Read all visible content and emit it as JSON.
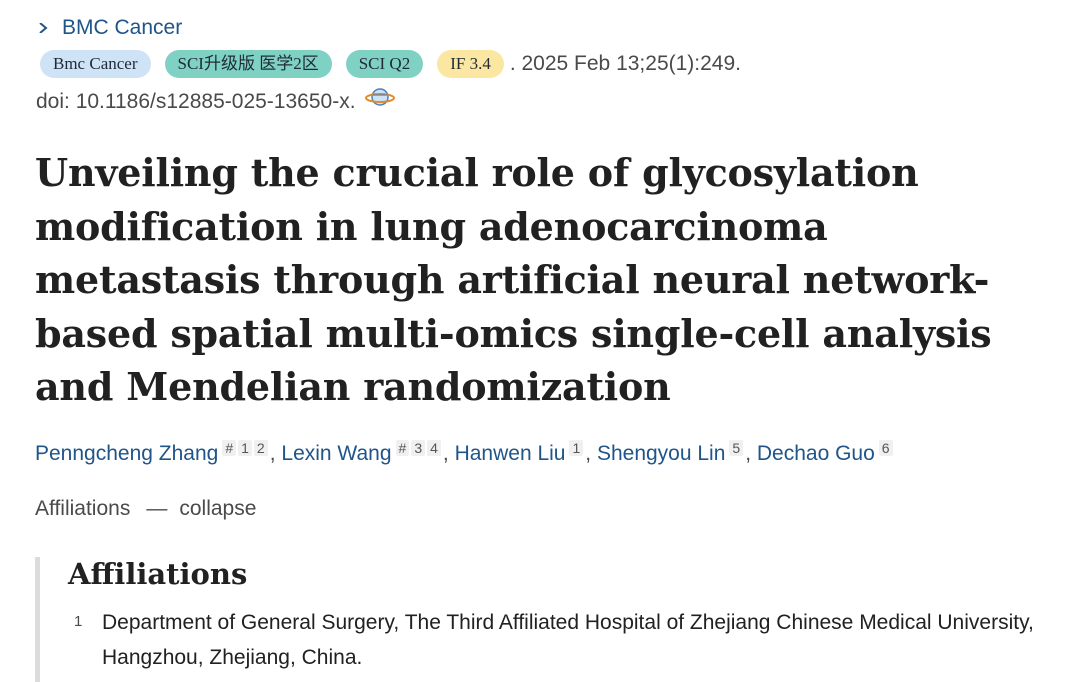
{
  "journal_link": {
    "label": "BMC Cancer"
  },
  "badges": {
    "journal": "Bmc Cancer",
    "sci": "SCI升级版 医学2区",
    "quartile": "SCI Q2",
    "impact_factor": "IF 3.4"
  },
  "citation": ". 2025 Feb 13;25(1):249.",
  "doi": "doi: 10.1186/s12885-025-13650-x.",
  "title": "Unveiling the crucial role of glycosylation modification in lung adenocarcinoma metastasis through artificial neural network-based spatial multi-omics single-cell analysis and Mendelian randomization",
  "authors": [
    {
      "name": "Penngcheng Zhang",
      "marks": [
        "#",
        "1",
        "2"
      ]
    },
    {
      "name": "Lexin Wang",
      "marks": [
        "#",
        "3",
        "4"
      ]
    },
    {
      "name": "Hanwen Liu",
      "marks": [
        "1"
      ]
    },
    {
      "name": "Shengyou Lin",
      "marks": [
        "5"
      ]
    },
    {
      "name": "Dechao Guo",
      "marks": [
        "6"
      ]
    }
  ],
  "affiliations_toggle": {
    "label": "Affiliations",
    "dash": "—",
    "action": "collapse"
  },
  "affiliations": {
    "heading": "Affiliations",
    "items": [
      {
        "num": "1",
        "text": "Department of General Surgery, The Third Affiliated Hospital of Zhejiang Chinese Medical University, Hangzhou, Zhejiang, China."
      }
    ]
  }
}
